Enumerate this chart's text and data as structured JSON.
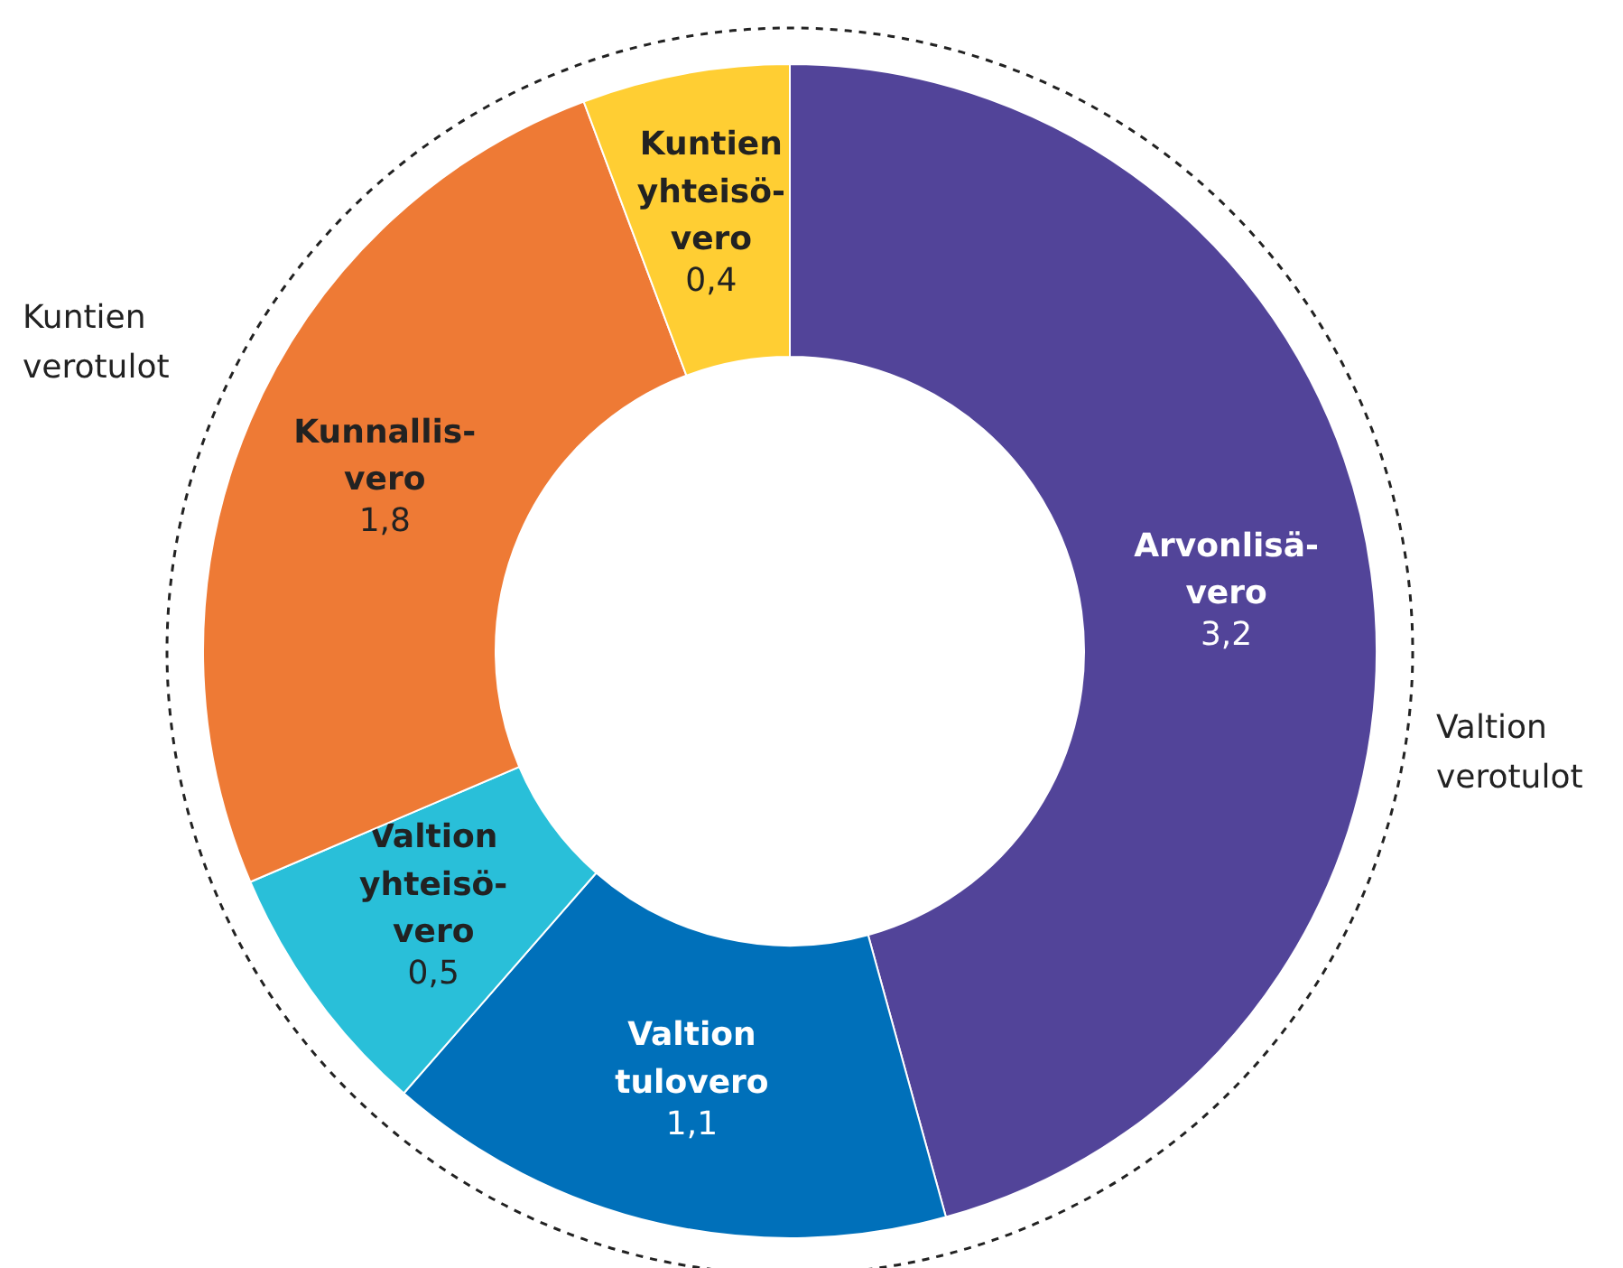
{
  "chart_data": {
    "type": "donut",
    "categories": [
      "Arvonlisä-\nvero",
      "Valtion\ntulovero",
      "Valtion\nyhteisö-\nvero",
      "Kunnallis-\nvero",
      "Kuntien\nyhteisö-\nvero"
    ],
    "values": [
      3.2,
      1.1,
      0.5,
      1.8,
      0.4
    ],
    "value_labels": [
      "3,2",
      "1,1",
      "0,5",
      "1,8",
      "0,4"
    ],
    "colors": [
      "#524499",
      "#0070ba",
      "#29bfd9",
      "#ee7a35",
      "#ffce33"
    ],
    "annotations": [
      "Kuntien\nverotulot",
      "Valtion\nverotulot"
    ],
    "legend": false
  }
}
